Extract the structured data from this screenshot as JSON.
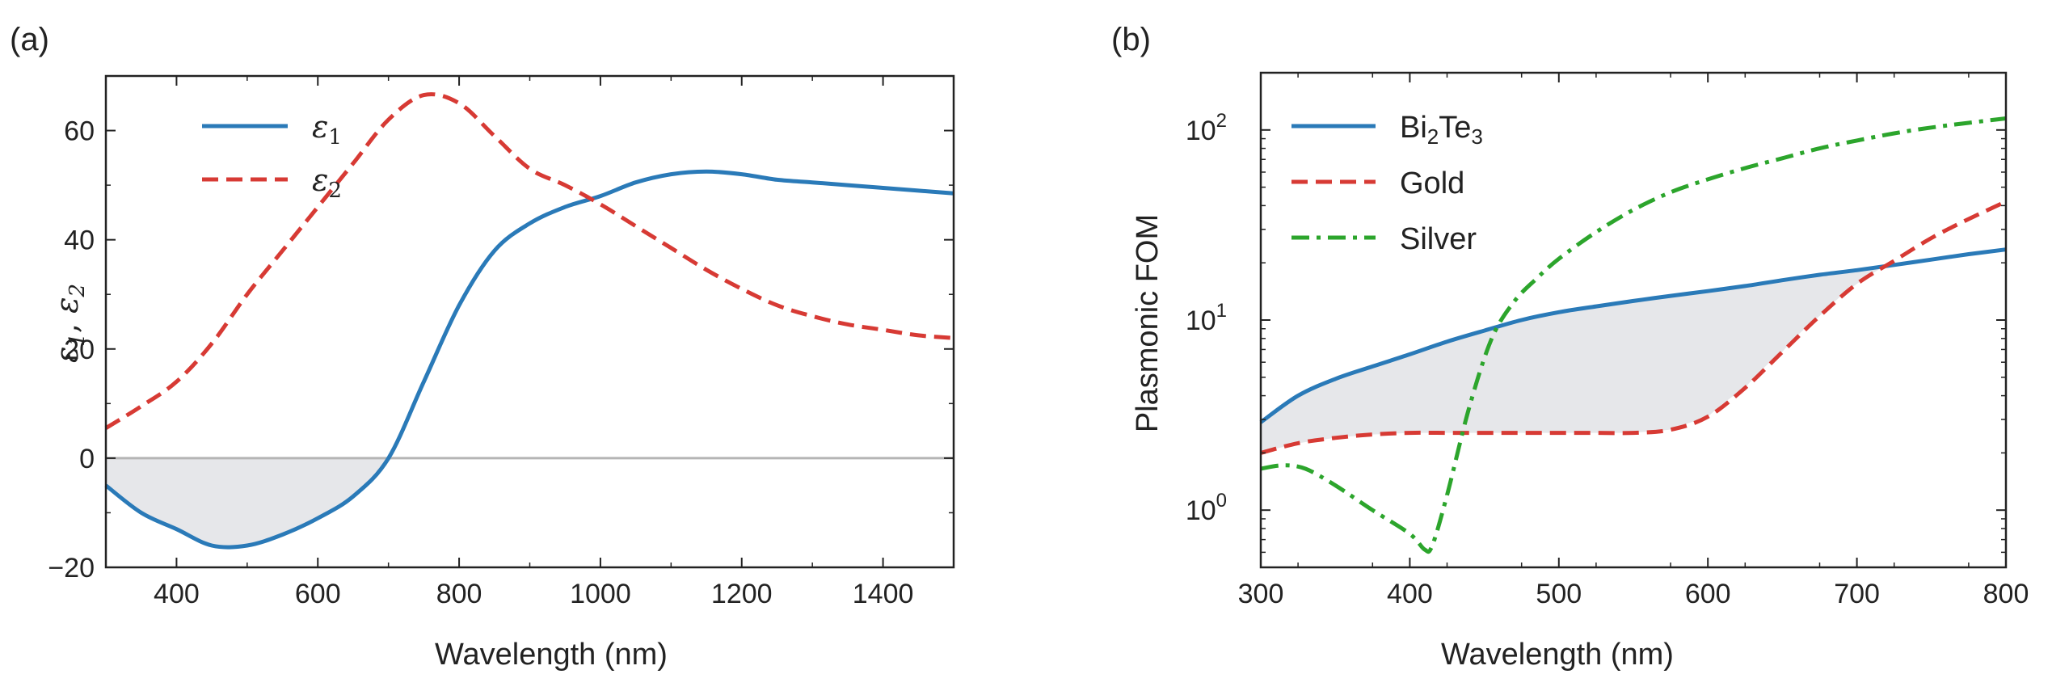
{
  "colors": {
    "blue": "#2a7ab8",
    "red": "#d73a34",
    "green": "#2ca52c",
    "fill": "#e6e7ea",
    "zero_line": "#b5b5b5",
    "axis": "#222222"
  },
  "chart_data": [
    {
      "type": "line",
      "panel_label": "(a)",
      "xlabel": "Wavelength (nm)",
      "ylabel": "ε1, ε2",
      "ylabel_parts": {
        "sym1": "ε",
        "sub1": "1",
        "sep": ", ",
        "sym2": "ε",
        "sub2": "2"
      },
      "xlim": [
        300,
        1500
      ],
      "ylim": [
        -20,
        70
      ],
      "xticks": [
        400,
        600,
        800,
        1000,
        1200,
        1400
      ],
      "xtick_labels": [
        "400",
        "600",
        "800",
        "1000",
        "1200",
        "1400"
      ],
      "yticks": [
        -20,
        0,
        20,
        40,
        60
      ],
      "ytick_labels": [
        "−20",
        "0",
        "20",
        "40",
        "60"
      ],
      "zero_line": true,
      "shaded": "negative ε1 region (between ε1 and 0)",
      "series": [
        {
          "name": "ε1",
          "symbol": "ε",
          "sub": "1",
          "style": "solid",
          "color_key": "blue",
          "x": [
            300,
            350,
            400,
            450,
            500,
            550,
            600,
            650,
            700,
            750,
            800,
            850,
            900,
            950,
            1000,
            1050,
            1100,
            1150,
            1200,
            1250,
            1300,
            1350,
            1400,
            1450,
            1500
          ],
          "y": [
            -5,
            -10,
            -13,
            -16,
            -16,
            -14,
            -11,
            -7,
            0,
            14,
            28,
            38,
            43,
            46,
            48,
            50.5,
            52,
            52.5,
            52,
            51,
            50.5,
            50,
            49.5,
            49,
            48.5
          ]
        },
        {
          "name": "ε2",
          "symbol": "ε",
          "sub": "2",
          "style": "dashed",
          "color_key": "red",
          "x": [
            300,
            350,
            400,
            450,
            500,
            550,
            600,
            650,
            700,
            750,
            800,
            850,
            900,
            950,
            1000,
            1050,
            1100,
            1150,
            1200,
            1250,
            1300,
            1350,
            1400,
            1450,
            1500
          ],
          "y": [
            5.5,
            9.5,
            14,
            21,
            30,
            38,
            46,
            54,
            62,
            66.5,
            65,
            59,
            53,
            50,
            46.5,
            42.5,
            38.5,
            34.5,
            31,
            28,
            26,
            24.5,
            23.5,
            22.5,
            22
          ]
        }
      ]
    },
    {
      "type": "line",
      "panel_label": "(b)",
      "xlabel": "Wavelength (nm)",
      "ylabel": "Plasmonic FOM",
      "yscale": "log",
      "xlim": [
        300,
        800
      ],
      "ylim": [
        0.5,
        200
      ],
      "xticks": [
        300,
        400,
        500,
        600,
        700,
        800
      ],
      "xtick_labels": [
        "300",
        "400",
        "500",
        "600",
        "700",
        "800"
      ],
      "yticks": [
        1,
        10,
        100
      ],
      "ytick_labels": [
        {
          "base": "10",
          "exp": "0"
        },
        {
          "base": "10",
          "exp": "1"
        },
        {
          "base": "10",
          "exp": "2"
        }
      ],
      "shaded": "region between Bi2Te3 and Gold where Bi2Te3 is higher",
      "series": [
        {
          "name": "Bi2Te3",
          "label_parts": [
            "Bi",
            "2",
            "Te",
            "3"
          ],
          "style": "solid",
          "color_key": "blue",
          "x": [
            300,
            325,
            350,
            375,
            400,
            425,
            450,
            475,
            500,
            525,
            550,
            575,
            600,
            625,
            650,
            675,
            700,
            725,
            750,
            775,
            800
          ],
          "y": [
            2.9,
            4.0,
            4.9,
            5.7,
            6.6,
            7.7,
            8.8,
            10.0,
            11.0,
            11.8,
            12.6,
            13.4,
            14.2,
            15.1,
            16.2,
            17.3,
            18.3,
            19.5,
            20.8,
            22.2,
            23.5
          ]
        },
        {
          "name": "Gold",
          "style": "dashed",
          "color_key": "red",
          "x": [
            300,
            325,
            350,
            375,
            400,
            425,
            450,
            475,
            500,
            525,
            550,
            575,
            600,
            625,
            650,
            675,
            700,
            725,
            750,
            775,
            800
          ],
          "y": [
            2.0,
            2.25,
            2.4,
            2.5,
            2.55,
            2.55,
            2.55,
            2.55,
            2.55,
            2.55,
            2.55,
            2.65,
            3.1,
            4.4,
            6.8,
            10.5,
            15.5,
            20.5,
            27,
            34,
            42
          ]
        },
        {
          "name": "Silver",
          "style": "dashdot",
          "color_key": "green",
          "x": [
            300,
            315,
            330,
            350,
            375,
            400,
            410,
            415,
            425,
            440,
            455,
            470,
            485,
            500,
            525,
            550,
            575,
            600,
            625,
            650,
            675,
            700,
            725,
            750,
            775,
            800
          ],
          "y": [
            1.65,
            1.72,
            1.65,
            1.35,
            1.0,
            0.75,
            0.62,
            0.65,
            1.2,
            3.5,
            8.0,
            12.5,
            16.5,
            21,
            29,
            38,
            47,
            55,
            63,
            71,
            80,
            88,
            96,
            103,
            109,
            115
          ]
        }
      ]
    }
  ]
}
